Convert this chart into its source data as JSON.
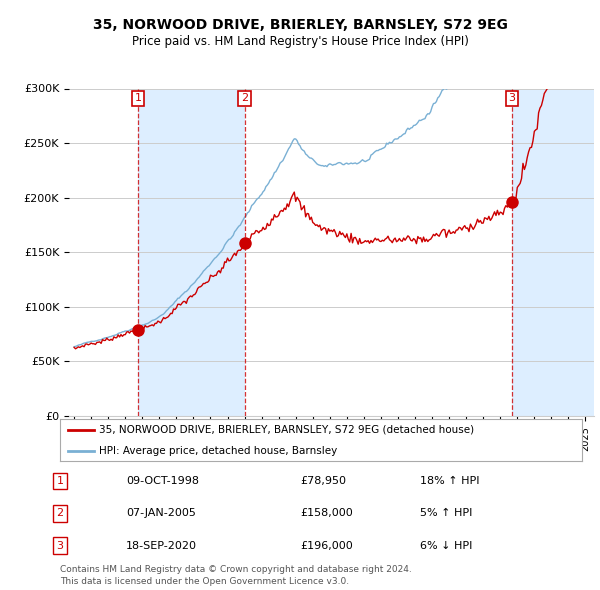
{
  "title": "35, NORWOOD DRIVE, BRIERLEY, BARNSLEY, S72 9EG",
  "subtitle": "Price paid vs. HM Land Registry's House Price Index (HPI)",
  "ylim": [
    0,
    300000
  ],
  "yticks": [
    0,
    50000,
    100000,
    150000,
    200000,
    250000,
    300000
  ],
  "ytick_labels": [
    "£0",
    "£50K",
    "£100K",
    "£150K",
    "£200K",
    "£250K",
    "£300K"
  ],
  "sale_labels": [
    "1",
    "2",
    "3"
  ],
  "sale_date_strs": [
    "09-OCT-1998",
    "07-JAN-2005",
    "18-SEP-2020"
  ],
  "sale_price_strs": [
    "£78,950",
    "£158,000",
    "£196,000"
  ],
  "sale_hpi_strs": [
    "18% ↑ HPI",
    "5% ↑ HPI",
    "6% ↓ HPI"
  ],
  "legend_line1": "35, NORWOOD DRIVE, BRIERLEY, BARNSLEY, S72 9EG (detached house)",
  "legend_line2": "HPI: Average price, detached house, Barnsley",
  "footer1": "Contains HM Land Registry data © Crown copyright and database right 2024.",
  "footer2": "This data is licensed under the Open Government Licence v3.0.",
  "line_color_red": "#cc0000",
  "line_color_blue": "#7ab0d4",
  "shade_color": "#ddeeff",
  "vline_color": "#cc0000",
  "background_color": "#ffffff",
  "grid_color": "#cccccc",
  "t1": 1998.75,
  "t2": 2005.0,
  "t3": 2020.7,
  "sale_prices": [
    78950,
    158000,
    196000
  ]
}
